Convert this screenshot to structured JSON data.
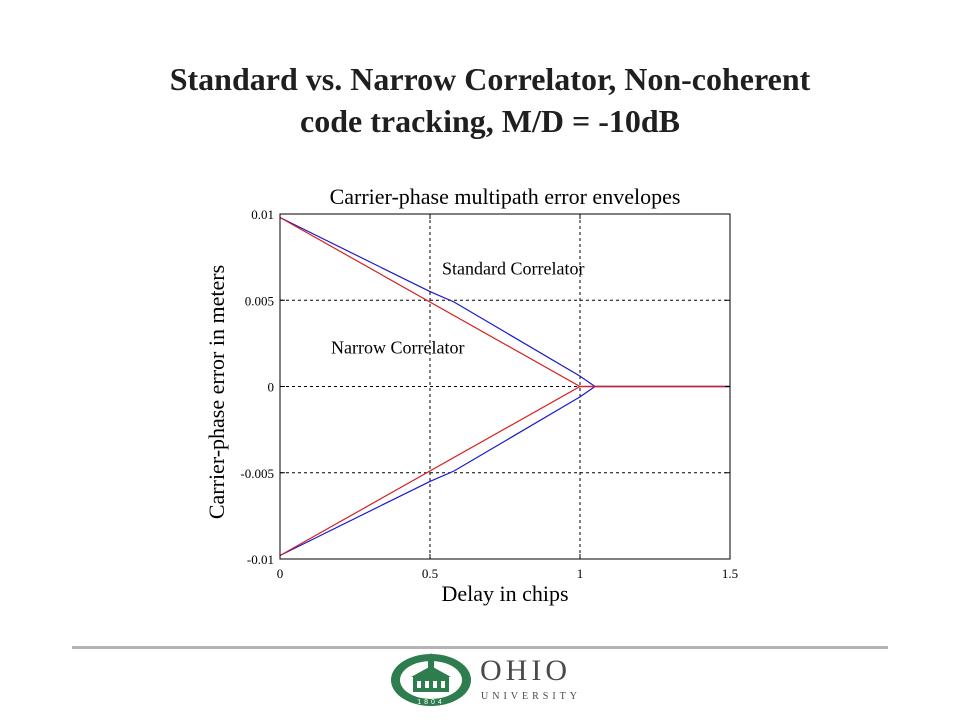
{
  "slide": {
    "title_line1": "Standard vs. Narrow Correlator, Non-coherent",
    "title_line2": "code tracking, M/D = -10dB"
  },
  "logo": {
    "wordmark": "OHIO",
    "subtext": "UNIVERSITY",
    "seal_year": "1804",
    "color": "#2e7d4f"
  },
  "chart_data": {
    "type": "line",
    "title": "Carrier-phase multipath error envelopes",
    "xlabel": "Delay in chips",
    "ylabel": "Carrier-phase error in meters",
    "xlim": [
      0,
      1.5
    ],
    "ylim": [
      -0.01,
      0.01
    ],
    "xticks": [
      0,
      0.5,
      1,
      1.5
    ],
    "xtick_labels": [
      "0",
      "0.5",
      "1",
      "1.5"
    ],
    "yticks": [
      0.01,
      0.005,
      0,
      -0.005,
      -0.01
    ],
    "ytick_labels": [
      "0.01",
      "0.005",
      "0",
      "-0.005",
      "-0.01"
    ],
    "grid": true,
    "series": [
      {
        "name": "Standard Correlator",
        "color": "#1a1acc",
        "upper": {
          "x": [
            0,
            0.5,
            0.58,
            1.0,
            1.05,
            1.5
          ],
          "y": [
            0.0098,
            0.0055,
            0.0049,
            0.0006,
            0.0,
            0.0
          ]
        },
        "lower": {
          "x": [
            0,
            0.5,
            0.58,
            1.0,
            1.05,
            1.5
          ],
          "y": [
            -0.0098,
            -0.0055,
            -0.0049,
            -0.0006,
            0.0,
            0.0
          ]
        }
      },
      {
        "name": "Narrow Correlator",
        "color": "#d42020",
        "upper": {
          "x": [
            0,
            1.0,
            1.05,
            1.5
          ],
          "y": [
            0.0098,
            0.0,
            0.0,
            0.0
          ]
        },
        "lower": {
          "x": [
            0,
            1.0,
            1.05,
            1.5
          ],
          "y": [
            -0.0098,
            0.0,
            0.0,
            0.0
          ]
        }
      }
    ],
    "annotations": [
      {
        "text": "Standard Correlator",
        "x": 0.54,
        "y": 0.0065
      },
      {
        "text": "Narrow Correlator",
        "x": 0.17,
        "y": 0.0019
      }
    ]
  }
}
